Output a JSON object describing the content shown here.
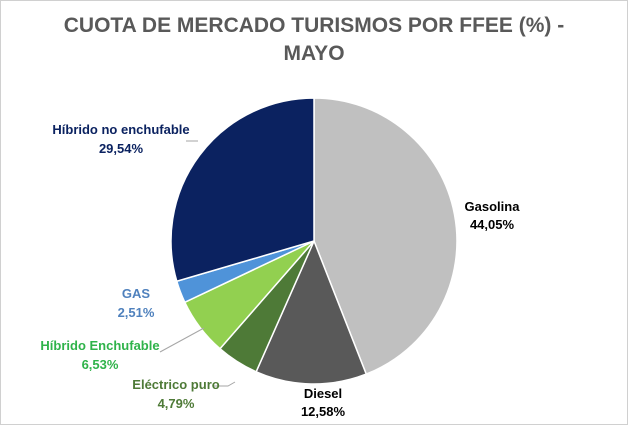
{
  "chart_data": {
    "type": "pie",
    "title_line1": "CUOTA DE MERCADO TURISMOS POR FFEE (%) -",
    "title_line2": "MAYO",
    "slices": [
      {
        "name": "Gasolina",
        "label": "44,05%",
        "value": 44.05,
        "color": "#c0c0c0",
        "text_color": "#000000"
      },
      {
        "name": "Diesel",
        "label": "12,58%",
        "value": 12.58,
        "color": "#595959",
        "text_color": "#000000"
      },
      {
        "name": "Eléctrico puro",
        "label": "4,79%",
        "value": 4.79,
        "color": "#4e7a37",
        "text_color": "#4e7a37"
      },
      {
        "name": "Híbrido Enchufable",
        "label": "6,53%",
        "value": 6.53,
        "color": "#92d050",
        "text_color": "#2fb34a"
      },
      {
        "name": "GAS",
        "label": "2,51%",
        "value": 2.51,
        "color": "#4f93d9",
        "text_color": "#4f81bd"
      },
      {
        "name": "Híbrido no enchufable",
        "label": "29,54%",
        "value": 29.54,
        "color": "#0b2260",
        "text_color": "#0b2260"
      }
    ]
  }
}
